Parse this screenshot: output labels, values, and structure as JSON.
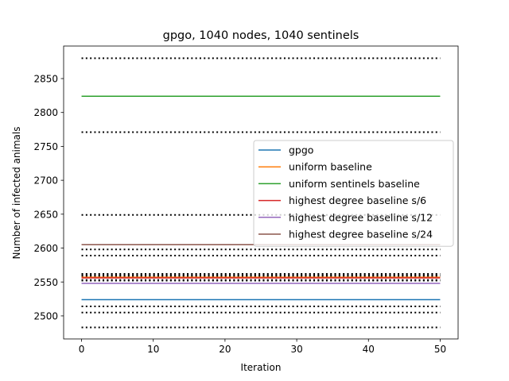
{
  "chart_data": {
    "type": "line",
    "title": "gpgo, 1040 nodes, 1040 sentinels",
    "xlabel": "Iteration",
    "ylabel": "Number of infected animals",
    "xlim": [
      -2.5,
      52.5
    ],
    "ylim": [
      2466,
      2898
    ],
    "xticks": [
      0,
      10,
      20,
      30,
      40,
      50
    ],
    "yticks": [
      2500,
      2550,
      2600,
      2650,
      2700,
      2750,
      2800,
      2850
    ],
    "legend_position": "center-right",
    "grid": false,
    "series": [
      {
        "name": "gpgo",
        "color": "#1f77b4",
        "x": [
          0,
          50
        ],
        "y": [
          2524,
          2524
        ],
        "bounds": [
          2514,
          2505
        ]
      },
      {
        "name": "uniform baseline",
        "color": "#ff7f0e",
        "x": [
          0,
          50
        ],
        "y": [
          2557,
          2557
        ],
        "bounds": [
          2562,
          2552
        ]
      },
      {
        "name": "uniform sentinels baseline",
        "color": "#2ca02c",
        "x": [
          0,
          50
        ],
        "y": [
          2824,
          2824
        ],
        "bounds": [
          2880,
          2771
        ]
      },
      {
        "name": "highest degree baseline s/6",
        "color": "#d62728",
        "x": [
          0,
          50
        ],
        "y": [
          2556,
          2556
        ],
        "bounds": [
          2559,
          2553
        ]
      },
      {
        "name": "highest degree baseline s/12",
        "color": "#9467bd",
        "x": [
          0,
          50
        ],
        "y": [
          2548,
          2548
        ],
        "bounds": [
          2560,
          2483
        ]
      },
      {
        "name": "highest degree baseline s/24",
        "color": "#8c564b",
        "x": [
          0,
          50
        ],
        "y": [
          2605,
          2605
        ],
        "bounds": [
          2649,
          2598
        ]
      }
    ],
    "extra_dotted_lines": [
      2589
    ]
  }
}
